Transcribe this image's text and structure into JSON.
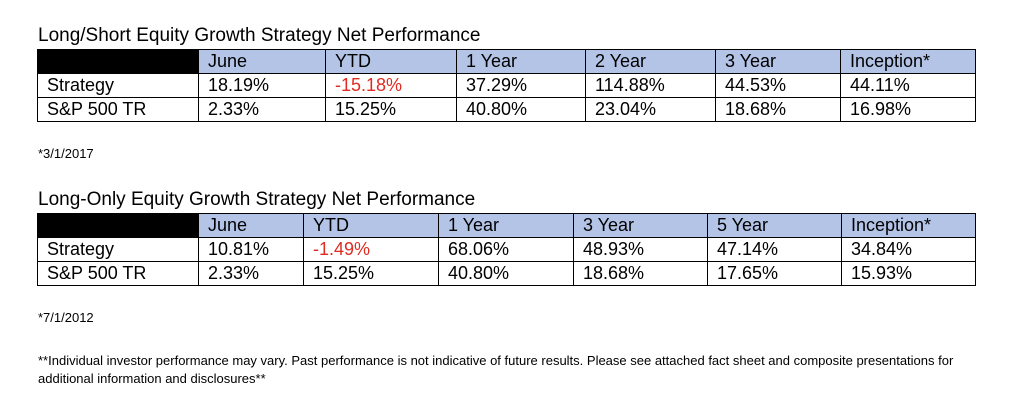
{
  "table1": {
    "title": "Long/Short Equity Growth Strategy Net Performance",
    "headers": [
      "June",
      "YTD",
      "1 Year",
      "2 Year",
      "3 Year",
      "Inception*"
    ],
    "rows": [
      {
        "label": "Strategy",
        "values": [
          "18.19%",
          "-15.18%",
          "37.29%",
          "114.88%",
          "44.53%",
          "44.11%"
        ]
      },
      {
        "label": "S&P 500 TR",
        "values": [
          "2.33%",
          "15.25%",
          "40.80%",
          "23.04%",
          "18.68%",
          "16.98%"
        ]
      }
    ],
    "footnote": "*3/1/2017"
  },
  "table2": {
    "title": "Long-Only Equity Growth Strategy Net Performance",
    "headers": [
      "June",
      "YTD",
      "1 Year",
      "3 Year",
      "5 Year",
      "Inception*"
    ],
    "rows": [
      {
        "label": "Strategy",
        "values": [
          "10.81%",
          "-1.49%",
          "68.06%",
          "48.93%",
          "47.14%",
          "34.84%"
        ]
      },
      {
        "label": "S&P 500 TR",
        "values": [
          "2.33%",
          "15.25%",
          "40.80%",
          "18.68%",
          "17.65%",
          "15.93%"
        ]
      }
    ],
    "footnote": "*7/1/2012"
  },
  "disclaimer": "**Individual investor performance may vary.  Past performance is not indicative of future results.  Please see attached fact sheet and composite presentations for additional information and disclosures**",
  "colors": {
    "header_fill": "#b4c4e7",
    "corner_fill": "#000000",
    "negative_text": "#e02b20"
  }
}
